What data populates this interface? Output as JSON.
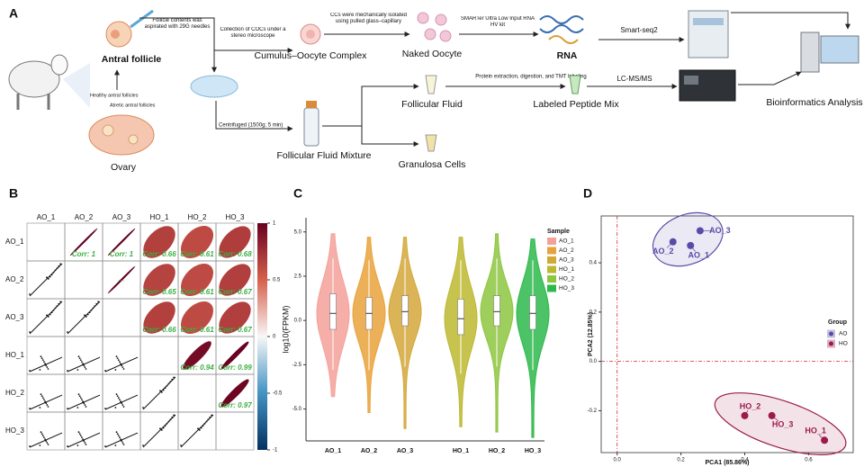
{
  "panel_a": {
    "label": "A",
    "needle_note": "Follicle contents was aspirated with 29G needles",
    "antral_follicle": "Antral follicle",
    "healthy": "Healthy antral follicles",
    "atretic": "Atretic antral follicles",
    "ovary": "Ovary",
    "coc_step": "Collection of COCs under a stereo microscope",
    "coc": "Cumulus–Oocyte Complex",
    "cc_step": "CCs were mechanically isolated using pulled glass–capillary",
    "naked_oocyte": "Naked Oocyte",
    "kit_step": "SMARTer Ultra Low Input RNA HV kit",
    "rna": "RNA",
    "smart_seq": "Smart-seq2",
    "bioinformatics": "Bioinformatics Analysis",
    "centrifuge_step": "Centrifuged (1500g; 5 min)",
    "ff_mixture": "Follicular Fluid Mixture",
    "ff": "Follicular Fluid",
    "protein_step": "Protein extraction, digestion, and TMT labeling",
    "peptide": "Labeled Peptide Mix",
    "lcms": "LC-MS/MS",
    "granulosa": "Granulosa Cells"
  },
  "chart_data": [
    {
      "type": "correlation_matrix",
      "label": "B",
      "categories": [
        "AO_1",
        "AO_2",
        "AO_3",
        "HO_1",
        "HO_2",
        "HO_3"
      ],
      "values": [
        [
          null,
          1,
          1,
          0.66,
          0.61,
          0.68
        ],
        [
          null,
          null,
          1,
          0.65,
          0.61,
          0.67
        ],
        [
          null,
          null,
          null,
          0.66,
          0.61,
          0.67
        ],
        [
          null,
          null,
          null,
          null,
          0.94,
          0.99
        ],
        [
          null,
          null,
          null,
          null,
          null,
          0.97
        ],
        [
          null,
          null,
          null,
          null,
          null,
          null
        ]
      ],
      "value_labels": [
        [
          null,
          "Corr: 1",
          "Corr: 1",
          "Corr: 0.66",
          "Corr: 0.61",
          "Corr: 0.68"
        ],
        [
          null,
          null,
          "Corr: 1",
          "Corr: 0.65",
          "Corr: 0.61",
          "Corr: 0.67"
        ],
        [
          null,
          null,
          null,
          "Corr: 0.66",
          "Corr: 0.61",
          "Corr: 0.67"
        ],
        [
          null,
          null,
          null,
          null,
          "Corr: 0.94",
          "Corr: 0.99"
        ],
        [
          null,
          null,
          null,
          null,
          null,
          "Corr: 0.97"
        ],
        [
          null,
          null,
          null,
          null,
          null,
          null
        ]
      ],
      "zlim": [
        -1,
        1
      ],
      "zticks": [
        1,
        0.5,
        0,
        -0.5,
        -1
      ],
      "colorscale": [
        "#053061",
        "#4393c3",
        "#f7f7f7",
        "#d6604d",
        "#67001f"
      ],
      "label_color": "#3cb043"
    },
    {
      "type": "violin",
      "label": "C",
      "ylabel": "log10(FPKM)",
      "legend_title": "Sample",
      "ylim": [
        -6.8,
        5.8
      ],
      "yticks": [
        {
          "value": -5,
          "label": "-5.0"
        },
        -2.5,
        {
          "value": 0,
          "label": "0.0"
        },
        2.5,
        {
          "value": 5,
          "label": "5.0"
        }
      ],
      "series": [
        {
          "name": "AO_1",
          "color": "#f4a09a",
          "min": -4.3,
          "whisker_low": -2.8,
          "q1": -0.5,
          "median": 0.4,
          "q3": 1.5,
          "whisker_high": 3.5,
          "max": 4.9
        },
        {
          "name": "AO_2",
          "color": "#e9a23b",
          "min": -5.2,
          "whisker_low": -2.8,
          "q1": -0.5,
          "median": 0.4,
          "q3": 1.3,
          "whisker_high": 3.4,
          "max": 4.7
        },
        {
          "name": "AO_3",
          "color": "#d4a73a",
          "min": -6.1,
          "whisker_low": -2.6,
          "q1": -0.3,
          "median": 0.5,
          "q3": 1.4,
          "whisker_high": 3.5,
          "max": 4.7
        },
        {
          "name": "HO_1",
          "color": "#bdb830",
          "min": -6.0,
          "whisker_low": -3.0,
          "q1": -0.8,
          "median": 0.1,
          "q3": 1.2,
          "whisker_high": 3.4,
          "max": 4.7
        },
        {
          "name": "HO_2",
          "color": "#8dc63f",
          "min": -6.3,
          "whisker_low": -2.6,
          "q1": -0.3,
          "median": 0.5,
          "q3": 1.4,
          "whisker_high": 3.5,
          "max": 4.9
        },
        {
          "name": "HO_3",
          "color": "#2db84b",
          "min": -6.6,
          "whisker_low": -2.8,
          "q1": -0.5,
          "median": 0.4,
          "q3": 1.4,
          "whisker_high": 3.4,
          "max": 4.6
        }
      ]
    },
    {
      "type": "scatter",
      "label": "D",
      "xlabel": "PCA1 (85.86%)",
      "ylabel": "PCA2 (12.85%)",
      "legend_title": "Group",
      "xlim": [
        -0.05,
        0.74
      ],
      "ylim": [
        -0.37,
        0.59
      ],
      "xticks": [
        {
          "value": 0,
          "label": "0.0"
        },
        0.2,
        0.4,
        0.6
      ],
      "yticks": [
        -0.2,
        {
          "value": 0,
          "label": "0.0"
        },
        0.2,
        0.4
      ],
      "ref_lines": {
        "x": 0,
        "y": 0
      },
      "series": [
        {
          "name": "AO",
          "color": "#5b4ba8",
          "labels": [
            "AO_1",
            "AO_2",
            "AO_3"
          ],
          "x": [
            0.23,
            0.175,
            0.26
          ],
          "y": [
            0.47,
            0.485,
            0.53
          ]
        },
        {
          "name": "HO",
          "color": "#9b1b4b",
          "labels": [
            "HO_1",
            "HO_2",
            "HO_3"
          ],
          "x": [
            0.65,
            0.4,
            0.485
          ],
          "y": [
            -0.32,
            -0.22,
            -0.22
          ]
        }
      ]
    }
  ]
}
